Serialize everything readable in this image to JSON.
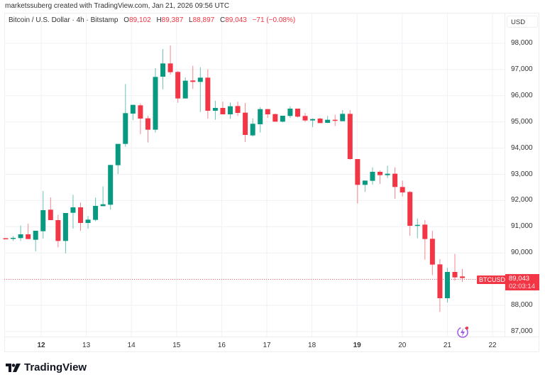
{
  "credit": "marketssuberg created with TradingView.com, Jan 21, 2026 09:56 UTC",
  "legend": {
    "title": "Bitcoin / U.S. Dollar · 4h · Bitstamp",
    "o_label": "O",
    "o": "89,102",
    "h_label": "H",
    "h": "89,387",
    "l_label": "L",
    "l": "88,897",
    "c_label": "C",
    "c": "89,043",
    "change": "−71 (−0.08%)"
  },
  "currency": "USD",
  "symbol_label": "BTCUSD",
  "last_price": "89,043",
  "countdown": "02:03:14",
  "brand": "TradingView",
  "colors": {
    "up": "#089981",
    "down": "#f23645",
    "grid": "#f0f1f4"
  },
  "chart_data": {
    "type": "candlestick",
    "interval": "4h",
    "y_ticks": [
      "98,000",
      "97,000",
      "96,000",
      "95,000",
      "94,000",
      "93,000",
      "92,000",
      "91,000",
      "90,000",
      "89,000",
      "88,000",
      "87,000"
    ],
    "y_tick_values": [
      98000,
      97000,
      96000,
      95000,
      94000,
      93000,
      92000,
      91000,
      90000,
      89000,
      88000,
      87000
    ],
    "x_ticks": [
      {
        "label": "12",
        "bold": true
      },
      {
        "label": "13"
      },
      {
        "label": "14"
      },
      {
        "label": "15"
      },
      {
        "label": "16"
      },
      {
        "label": "17"
      },
      {
        "label": "18"
      },
      {
        "label": "19",
        "bold": true
      },
      {
        "label": "20"
      },
      {
        "label": "21"
      },
      {
        "label": "22"
      }
    ],
    "ylim": [
      86850,
      98300
    ],
    "ohlc": [
      [
        90560,
        90570,
        90540,
        90550
      ],
      [
        90540,
        90640,
        90460,
        90575
      ],
      [
        90566,
        91044,
        90457,
        90710
      ],
      [
        90710,
        91117,
        90520,
        90530
      ],
      [
        90502,
        90846,
        90060,
        90846
      ],
      [
        90828,
        92363,
        90547,
        91632
      ],
      [
        91650,
        92119,
        91252,
        91252
      ],
      [
        91252,
        91451,
        90213,
        90457
      ],
      [
        90457,
        91523,
        89987,
        91523
      ],
      [
        91532,
        92219,
        90927,
        91740
      ],
      [
        91740,
        91921,
        90846,
        91144
      ],
      [
        91144,
        91406,
        90927,
        91270
      ],
      [
        91262,
        92110,
        91207,
        91794
      ],
      [
        91785,
        92535,
        91785,
        91857
      ],
      [
        91839,
        93357,
        91650,
        93357
      ],
      [
        93348,
        94161,
        93014,
        94161
      ],
      [
        94161,
        96446,
        94053,
        95335
      ],
      [
        95317,
        95651,
        95073,
        95651
      ],
      [
        95633,
        95705,
        94531,
        95127
      ],
      [
        95136,
        95236,
        94215,
        94703
      ],
      [
        94703,
        97051,
        94594,
        96717
      ],
      [
        96726,
        97783,
        96247,
        97232
      ],
      [
        97232,
        97919,
        96808,
        96898
      ],
      [
        96907,
        96943,
        95733,
        95895
      ],
      [
        95895,
        96699,
        95895,
        96573
      ],
      [
        96582,
        97142,
        96257,
        96527
      ],
      [
        96527,
        97088,
        95380,
        96690
      ],
      [
        96690,
        97006,
        95127,
        95425
      ],
      [
        95425,
        95805,
        95082,
        95534
      ],
      [
        95534,
        95778,
        95290,
        95290
      ],
      [
        95290,
        95741,
        95118,
        95597
      ],
      [
        95606,
        95769,
        95227,
        95344
      ],
      [
        95353,
        95724,
        94233,
        94504
      ],
      [
        94486,
        95136,
        94441,
        94929
      ],
      [
        94911,
        95561,
        94594,
        95489
      ],
      [
        95489,
        95489,
        95154,
        95290
      ],
      [
        95299,
        95317,
        95010,
        95010
      ],
      [
        95010,
        95236,
        94980,
        95236
      ],
      [
        95227,
        95597,
        95154,
        95507
      ],
      [
        95507,
        95507,
        95170,
        95200
      ],
      [
        95227,
        95344,
        95001,
        95055
      ],
      [
        95055,
        95136,
        94802,
        95109
      ],
      [
        95127,
        95160,
        94956,
        94956
      ],
      [
        94965,
        95227,
        94956,
        95082
      ],
      [
        95082,
        95272,
        94848,
        95046
      ],
      [
        95028,
        95453,
        95028,
        95308
      ],
      [
        95308,
        95453,
        93556,
        93583
      ],
      [
        93583,
        93583,
        91884,
        92598
      ],
      [
        92598,
        92761,
        92327,
        92761
      ],
      [
        92752,
        93267,
        92607,
        93095
      ],
      [
        93095,
        93149,
        92634,
        92968
      ],
      [
        92968,
        93330,
        92860,
        93023
      ],
      [
        93023,
        93267,
        92065,
        92517
      ],
      [
        92517,
        92761,
        92155,
        92309
      ],
      [
        92327,
        92363,
        90656,
        91035
      ],
      [
        91035,
        91315,
        90557,
        91071
      ],
      [
        91080,
        91252,
        89744,
        90530
      ],
      [
        90539,
        90845,
        89157,
        89554
      ],
      [
        89563,
        89762,
        87747,
        88271
      ],
      [
        88271,
        89428,
        88109,
        89274
      ],
      [
        89274,
        89960,
        88940,
        89066
      ],
      [
        89102,
        89387,
        88897,
        89043
      ]
    ]
  }
}
